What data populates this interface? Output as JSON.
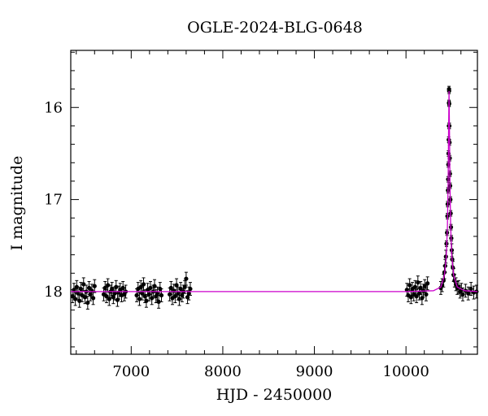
{
  "chart_data": {
    "type": "scatter",
    "title": "OGLE-2024-BLG-0648",
    "xlabel": "HJD - 2450000",
    "ylabel": "I magnitude",
    "xlim": [
      6340,
      10780
    ],
    "ylim": [
      18.68,
      15.38
    ],
    "y_inverted": true,
    "x_ticks": [
      7000,
      8000,
      9000,
      10000
    ],
    "x_minor_step": 200,
    "y_ticks": [
      16,
      17,
      18
    ],
    "y_minor_step": 0.2,
    "grid": false,
    "colors": {
      "points": "#000000",
      "model": "#cc00cc",
      "axes": "#000000"
    },
    "model": {
      "name": "",
      "baseline": 18.0,
      "peak_time": 10470,
      "peak_mag": 15.82,
      "samples": [
        [
          6340,
          18.0
        ],
        [
          8000,
          18.0
        ],
        [
          10000,
          18.0
        ],
        [
          10300,
          17.99
        ],
        [
          10380,
          17.95
        ],
        [
          10420,
          17.82
        ],
        [
          10440,
          17.62
        ],
        [
          10452,
          17.3
        ],
        [
          10460,
          16.8
        ],
        [
          10465,
          16.3
        ],
        [
          10470,
          15.82
        ],
        [
          10475,
          16.3
        ],
        [
          10480,
          16.8
        ],
        [
          10488,
          17.3
        ],
        [
          10500,
          17.62
        ],
        [
          10520,
          17.82
        ],
        [
          10560,
          17.95
        ],
        [
          10640,
          17.99
        ],
        [
          10780,
          18.0
        ]
      ]
    },
    "series": [
      {
        "points": [
          [
            6360,
            18.05
          ],
          [
            6375,
            17.98
          ],
          [
            6390,
            18.08
          ],
          [
            6405,
            17.95
          ],
          [
            6420,
            18.02
          ],
          [
            6435,
            18.1
          ],
          [
            6450,
            17.97
          ],
          [
            6465,
            18.04
          ],
          [
            6480,
            17.92
          ],
          [
            6495,
            18.06
          ],
          [
            6510,
            18.0
          ],
          [
            6525,
            18.12
          ],
          [
            6540,
            17.96
          ],
          [
            6555,
            18.03
          ],
          [
            6570,
            17.99
          ],
          [
            6585,
            18.07
          ],
          [
            6600,
            17.94
          ],
          [
            6700,
            18.03
          ],
          [
            6715,
            17.96
          ],
          [
            6730,
            18.05
          ],
          [
            6745,
            17.93
          ],
          [
            6760,
            18.08
          ],
          [
            6775,
            18.0
          ],
          [
            6790,
            17.97
          ],
          [
            6805,
            18.06
          ],
          [
            6820,
            18.02
          ],
          [
            6835,
            17.95
          ],
          [
            6850,
            18.09
          ],
          [
            6865,
            18.01
          ],
          [
            6880,
            17.98
          ],
          [
            6895,
            18.04
          ],
          [
            6910,
            17.96
          ],
          [
            6925,
            18.03
          ],
          [
            6940,
            18.0
          ],
          [
            7060,
            18.04
          ],
          [
            7075,
            17.97
          ],
          [
            7090,
            18.08
          ],
          [
            7105,
            17.95
          ],
          [
            7120,
            18.02
          ],
          [
            7135,
            17.92
          ],
          [
            7150,
            18.05
          ],
          [
            7165,
            18.1
          ],
          [
            7180,
            17.98
          ],
          [
            7195,
            18.03
          ],
          [
            7210,
            17.96
          ],
          [
            7225,
            18.07
          ],
          [
            7240,
            18.0
          ],
          [
            7255,
            17.94
          ],
          [
            7270,
            18.05
          ],
          [
            7285,
            18.02
          ],
          [
            7300,
            18.11
          ],
          [
            7315,
            17.97
          ],
          [
            7330,
            18.04
          ],
          [
            7420,
            18.03
          ],
          [
            7435,
            17.96
          ],
          [
            7450,
            18.07
          ],
          [
            7465,
            17.99
          ],
          [
            7480,
            18.05
          ],
          [
            7495,
            17.93
          ],
          [
            7510,
            18.02
          ],
          [
            7525,
            18.08
          ],
          [
            7540,
            17.97
          ],
          [
            7555,
            18.04
          ],
          [
            7570,
            18.0
          ],
          [
            7585,
            17.95
          ],
          [
            7600,
            17.86
          ],
          [
            7615,
            18.06
          ],
          [
            7630,
            18.02
          ],
          [
            7645,
            17.97
          ],
          [
            10010,
            17.98
          ],
          [
            10025,
            18.04
          ],
          [
            10040,
            17.93
          ],
          [
            10055,
            18.06
          ],
          [
            10070,
            17.97
          ],
          [
            10085,
            18.03
          ],
          [
            10100,
            17.95
          ],
          [
            10115,
            18.05
          ],
          [
            10130,
            17.9
          ],
          [
            10145,
            18.02
          ],
          [
            10160,
            17.96
          ],
          [
            10175,
            18.07
          ],
          [
            10190,
            17.99
          ],
          [
            10205,
            17.94
          ],
          [
            10220,
            18.03
          ],
          [
            10235,
            17.91
          ],
          [
            10380,
            17.96
          ],
          [
            10395,
            17.93
          ],
          [
            10410,
            17.88
          ],
          [
            10420,
            17.79
          ],
          [
            10428,
            17.72
          ],
          [
            10436,
            17.62
          ],
          [
            10442,
            17.48
          ],
          [
            10448,
            17.36
          ],
          [
            10452,
            17.18
          ],
          [
            10455,
            17.05
          ],
          [
            10458,
            16.9
          ],
          [
            10460,
            16.78
          ],
          [
            10462,
            16.62
          ],
          [
            10464,
            16.5
          ],
          [
            10466,
            16.35
          ],
          [
            10468,
            16.2
          ],
          [
            10469,
            15.95
          ],
          [
            10470,
            15.8
          ],
          [
            10471,
            15.82
          ],
          [
            10472,
            15.96
          ],
          [
            10474,
            16.2
          ],
          [
            10476,
            16.38
          ],
          [
            10478,
            16.55
          ],
          [
            10480,
            16.72
          ],
          [
            10482,
            16.85
          ],
          [
            10485,
            17.0
          ],
          [
            10488,
            17.15
          ],
          [
            10491,
            17.3
          ],
          [
            10495,
            17.42
          ],
          [
            10500,
            17.55
          ],
          [
            10505,
            17.65
          ],
          [
            10512,
            17.74
          ],
          [
            10520,
            17.82
          ],
          [
            10530,
            17.88
          ],
          [
            10545,
            17.92
          ],
          [
            10560,
            17.96
          ],
          [
            10575,
            17.95
          ],
          [
            10590,
            18.0
          ],
          [
            10605,
            17.98
          ],
          [
            10620,
            18.03
          ],
          [
            10650,
            17.99
          ],
          [
            10680,
            18.02
          ],
          [
            10710,
            17.97
          ],
          [
            10740,
            18.01
          ],
          [
            10770,
            18.0
          ]
        ]
      }
    ]
  }
}
